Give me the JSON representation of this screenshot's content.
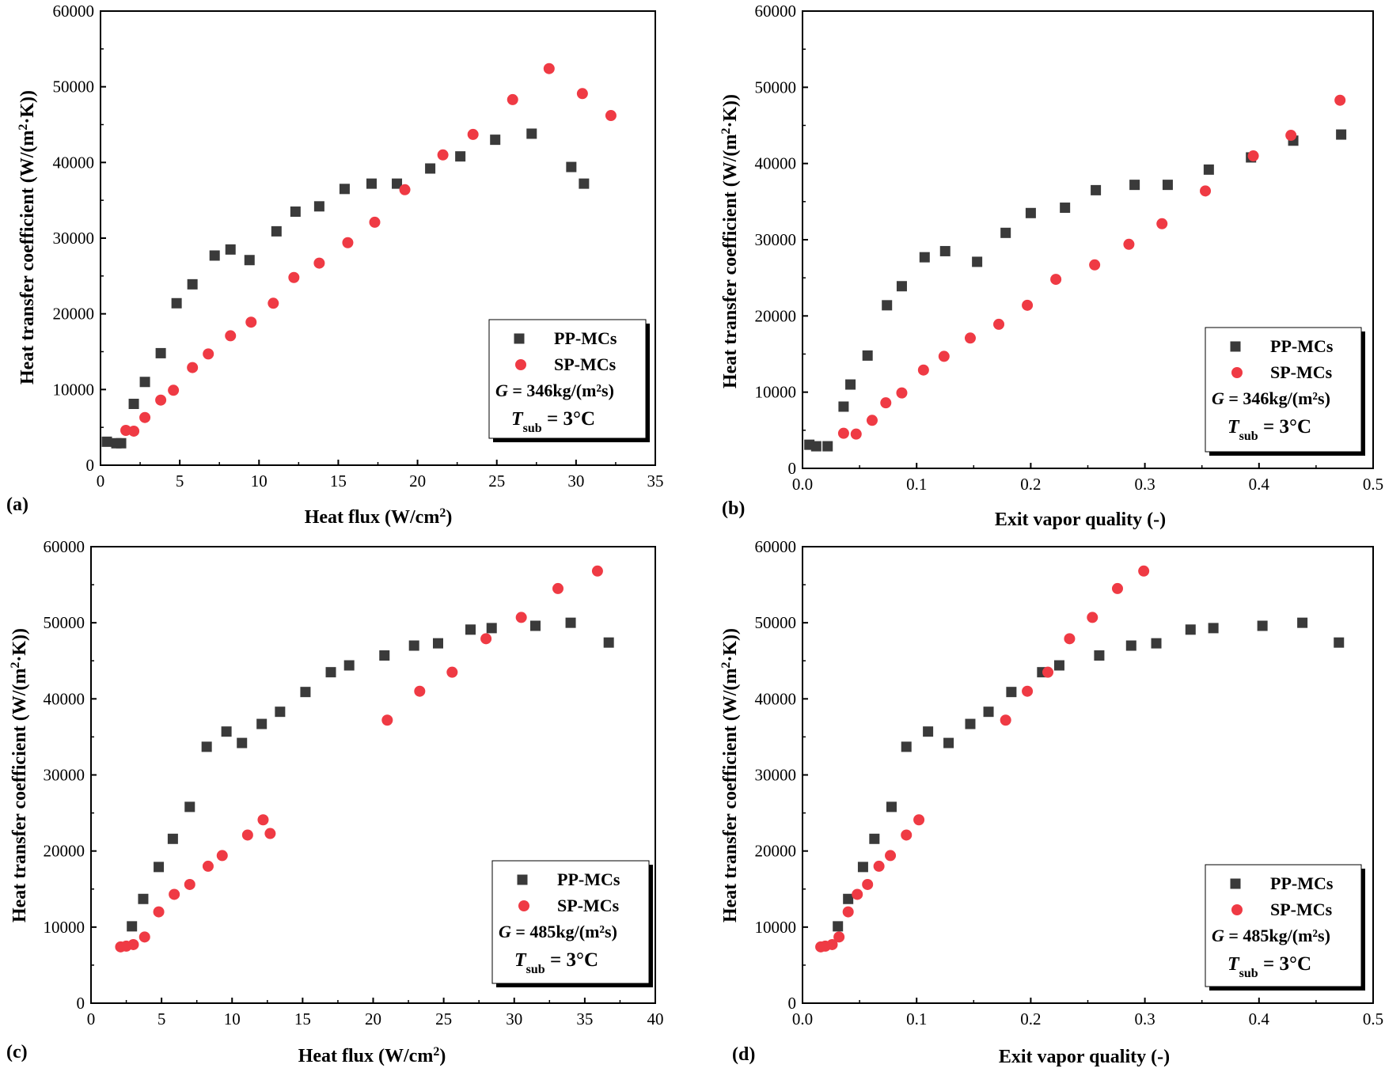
{
  "chart_data": [
    {
      "type": "scatter",
      "panel_label": "(a)",
      "xlabel": "Heat flux  (W/cm",
      "xlabel_sup": "2",
      "xlabel_end": ")",
      "ylabel": "Heat transfer coefficient (W/(m",
      "ylabel_sup": "2",
      "ylabel_end": "·K))",
      "xlim": [
        0,
        35
      ],
      "ylim": [
        0,
        60000
      ],
      "xticks": [
        "0",
        "5",
        "10",
        "15",
        "20",
        "25",
        "30",
        "35"
      ],
      "xtick_values": [
        0,
        5,
        10,
        15,
        20,
        25,
        30,
        35
      ],
      "yticks": [
        "0",
        "10000",
        "20000",
        "30000",
        "40000",
        "50000",
        "60000"
      ],
      "ytick_values": [
        0,
        10000,
        20000,
        30000,
        40000,
        50000,
        60000
      ],
      "legend": {
        "entries": [
          "PP-MCs",
          "SP-MCs"
        ],
        "g_symbol": "G",
        "g_value": " = 346kg/(m²s)",
        "t_symbol": "T",
        "t_sub": "sub",
        "t_value": " = 3°C",
        "location": "lower-right"
      },
      "series": [
        {
          "name": "PP-MCs",
          "marker": "square",
          "color": "#3a3a3a",
          "x": [
            0.4,
            1.0,
            1.3,
            2.1,
            2.8,
            3.8,
            4.8,
            5.8,
            7.2,
            8.2,
            9.4,
            11.1,
            12.3,
            13.8,
            15.4,
            17.1,
            18.7,
            20.8,
            22.7,
            24.9,
            27.2,
            29.7,
            30.5
          ],
          "y": [
            3100,
            2900,
            2900,
            8100,
            11000,
            14800,
            21400,
            23900,
            27700,
            28500,
            27100,
            30900,
            33500,
            34200,
            36500,
            37200,
            37200,
            39200,
            40800,
            43000,
            43800,
            39400,
            37200
          ]
        },
        {
          "name": "SP-MCs",
          "marker": "circle",
          "color": "#ef3a44",
          "x": [
            1.6,
            2.1,
            2.8,
            3.8,
            4.6,
            5.8,
            6.8,
            8.2,
            9.5,
            10.9,
            12.2,
            13.8,
            15.6,
            17.3,
            19.2,
            21.6,
            23.5,
            26.0,
            28.3,
            30.4,
            32.2
          ],
          "y": [
            4600,
            4500,
            6300,
            8600,
            9900,
            12900,
            14700,
            17100,
            18900,
            21400,
            24800,
            26700,
            29400,
            32100,
            36400,
            41000,
            43700,
            48300,
            52400,
            49100,
            46200
          ]
        }
      ]
    },
    {
      "type": "scatter",
      "panel_label": "(b)",
      "xlabel": "Exit vapor quality (-)",
      "ylabel": "Heat transfer coefficient (W/(m",
      "ylabel_sup": "2",
      "ylabel_end": "·K))",
      "xlim": [
        0,
        0.5
      ],
      "ylim": [
        0,
        60000
      ],
      "xticks": [
        "0.0",
        "0.1",
        "0.2",
        "0.3",
        "0.4",
        "0.5"
      ],
      "xtick_values": [
        0,
        0.1,
        0.2,
        0.3,
        0.4,
        0.5
      ],
      "yticks": [
        "0",
        "10000",
        "20000",
        "30000",
        "40000",
        "50000",
        "60000"
      ],
      "ytick_values": [
        0,
        10000,
        20000,
        30000,
        40000,
        50000,
        60000
      ],
      "legend": {
        "entries": [
          "PP-MCs",
          "SP-MCs"
        ],
        "g_symbol": "G",
        "g_value": " = 346kg/(m²s)",
        "t_symbol": "T",
        "t_sub": "sub",
        "t_value": " = 3°C",
        "location": "lower-right"
      },
      "series": [
        {
          "name": "PP-MCs",
          "marker": "square",
          "color": "#3a3a3a",
          "x": [
            0.006,
            0.012,
            0.022,
            0.036,
            0.042,
            0.057,
            0.074,
            0.087,
            0.107,
            0.125,
            0.153,
            0.178,
            0.2,
            0.23,
            0.257,
            0.291,
            0.32,
            0.356,
            0.393,
            0.43,
            0.472
          ],
          "y": [
            3100,
            2900,
            2900,
            8100,
            11000,
            14800,
            21400,
            23900,
            27700,
            28500,
            27100,
            30900,
            33500,
            34200,
            36500,
            37200,
            37200,
            39200,
            40800,
            43000,
            43800
          ]
        },
        {
          "name": "SP-MCs",
          "marker": "circle",
          "color": "#ef3a44",
          "x": [
            0.036,
            0.047,
            0.061,
            0.073,
            0.087,
            0.106,
            0.124,
            0.147,
            0.172,
            0.197,
            0.222,
            0.256,
            0.286,
            0.315,
            0.353,
            0.395,
            0.428,
            0.471
          ],
          "y": [
            4600,
            4500,
            6300,
            8600,
            9900,
            12900,
            14700,
            17100,
            18900,
            21400,
            24800,
            26700,
            29400,
            32100,
            36400,
            41000,
            43700,
            48300
          ]
        }
      ]
    },
    {
      "type": "scatter",
      "panel_label": "(c)",
      "xlabel": "Heat flux  (W/cm",
      "xlabel_sup": "2",
      "xlabel_end": ")",
      "ylabel": "Heat transfer coefficient (W/(m",
      "ylabel_sup": "2",
      "ylabel_end": "·K))",
      "xlim": [
        0,
        40
      ],
      "ylim": [
        0,
        60000
      ],
      "xticks": [
        "0",
        "5",
        "10",
        "15",
        "20",
        "25",
        "30",
        "35",
        "40"
      ],
      "xtick_values": [
        0,
        5,
        10,
        15,
        20,
        25,
        30,
        35,
        40
      ],
      "yticks": [
        "0",
        "10000",
        "20000",
        "30000",
        "40000",
        "50000",
        "60000"
      ],
      "ytick_values": [
        0,
        10000,
        20000,
        30000,
        40000,
        50000,
        60000
      ],
      "legend": {
        "entries": [
          "PP-MCs",
          "SP-MCs"
        ],
        "g_symbol": "G",
        "g_value": " = 485kg/(m²s)",
        "t_symbol": "T",
        "t_sub": "sub",
        "t_value": " = 3°C",
        "location": "lower-right"
      },
      "series": [
        {
          "name": "PP-MCs",
          "marker": "square",
          "color": "#3a3a3a",
          "x": [
            2.9,
            3.7,
            4.8,
            5.8,
            7.0,
            8.2,
            9.6,
            10.7,
            12.1,
            13.4,
            15.2,
            17.0,
            18.3,
            20.8,
            22.9,
            24.6,
            26.9,
            28.4,
            31.5,
            34.0,
            36.7
          ],
          "y": [
            10100,
            13700,
            17900,
            21600,
            25800,
            33700,
            35700,
            34200,
            36700,
            38300,
            40900,
            43500,
            44400,
            45700,
            47000,
            47300,
            49100,
            49300,
            49600,
            50000,
            47400
          ]
        },
        {
          "name": "SP-MCs",
          "marker": "circle",
          "color": "#ef3a44",
          "x": [
            2.1,
            2.5,
            3.0,
            3.8,
            4.8,
            5.9,
            7.0,
            8.3,
            9.3,
            11.1,
            12.2,
            12.7,
            21.0,
            23.3,
            25.6,
            28.0,
            30.5,
            33.1,
            35.9
          ],
          "y": [
            7400,
            7500,
            7700,
            8700,
            12000,
            14300,
            15600,
            18000,
            19400,
            22100,
            24100,
            22300,
            37200,
            41000,
            43500,
            47900,
            50700,
            54500,
            56800
          ]
        }
      ]
    },
    {
      "type": "scatter",
      "panel_label": "(d)",
      "xlabel": "Exit vapor quality (-)",
      "ylabel": "Heat transfer coefficient (W/(m",
      "ylabel_sup": "2",
      "ylabel_end": "·K))",
      "xlim": [
        0,
        0.5
      ],
      "ylim": [
        0,
        60000
      ],
      "xticks": [
        "0.0",
        "0.1",
        "0.2",
        "0.3",
        "0.4",
        "0.5"
      ],
      "xtick_values": [
        0,
        0.1,
        0.2,
        0.3,
        0.4,
        0.5
      ],
      "yticks": [
        "0",
        "10000",
        "20000",
        "30000",
        "40000",
        "50000",
        "60000"
      ],
      "ytick_values": [
        0,
        10000,
        20000,
        30000,
        40000,
        50000,
        60000
      ],
      "legend": {
        "entries": [
          "PP-MCs",
          "SP-MCs"
        ],
        "g_symbol": "G",
        "g_value": " = 485kg/(m²s)",
        "t_symbol": "T",
        "t_sub": "sub",
        "t_value": " = 3°C",
        "location": "lower-right"
      },
      "series": [
        {
          "name": "PP-MCs",
          "marker": "square",
          "color": "#3a3a3a",
          "x": [
            0.031,
            0.04,
            0.053,
            0.063,
            0.078,
            0.091,
            0.11,
            0.128,
            0.147,
            0.163,
            0.183,
            0.21,
            0.225,
            0.26,
            0.288,
            0.31,
            0.34,
            0.36,
            0.403,
            0.438,
            0.47
          ],
          "y": [
            10100,
            13700,
            17900,
            21600,
            25800,
            33700,
            35700,
            34200,
            36700,
            38300,
            40900,
            43500,
            44400,
            45700,
            47000,
            47300,
            49100,
            49300,
            49600,
            50000,
            47400
          ]
        },
        {
          "name": "SP-MCs",
          "marker": "circle",
          "color": "#ef3a44",
          "x": [
            0.016,
            0.02,
            0.026,
            0.032,
            0.04,
            0.048,
            0.057,
            0.067,
            0.077,
            0.091,
            0.102,
            0.178,
            0.197,
            0.215,
            0.234,
            0.254,
            0.276,
            0.299
          ],
          "y": [
            7400,
            7500,
            7700,
            8700,
            12000,
            14300,
            15600,
            18000,
            19400,
            22100,
            24100,
            37200,
            41000,
            43500,
            47900,
            50700,
            54500,
            56800
          ]
        }
      ]
    }
  ]
}
